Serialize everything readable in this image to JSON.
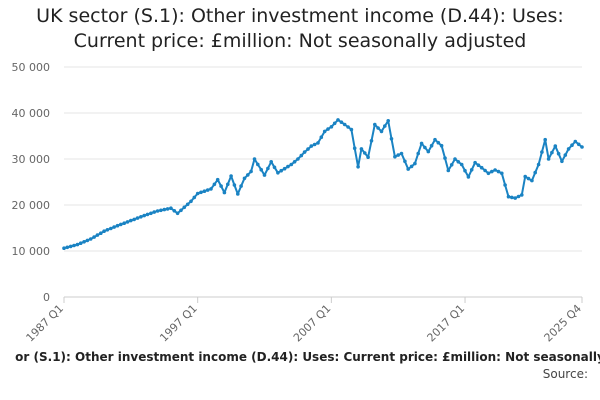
{
  "title_lines": [
    "UK sector (S.1): Other investment income (D.44): Uses:",
    "Current price: £million: Not seasonally adjusted"
  ],
  "footer_series_label": "or (S.1): Other investment income (D.44): Uses: Current price: £million: Not seasonally",
  "source_label": "Source:",
  "colors": {
    "line": "#1a83c3",
    "grid": "#e6e6e6",
    "axis": "#cccccc"
  },
  "chart_data": {
    "type": "line",
    "title": "UK sector (S.1): Other investment income (D.44): Uses: Current price: £million: Not seasonally adjusted",
    "xlabel": "",
    "ylabel": "",
    "ylim": [
      0,
      50000
    ],
    "y_ticks": [
      0,
      10000,
      20000,
      30000,
      40000,
      50000
    ],
    "y_tick_labels": [
      "0",
      "10 000",
      "20 000",
      "30 000",
      "40 000",
      "50 000"
    ],
    "x_ticks": [
      "1987 Q1",
      "1997 Q1",
      "2007 Q1",
      "2017 Q1",
      "2025 Q4"
    ],
    "x_range": [
      "1987 Q1",
      "2025 Q4"
    ],
    "grid": true,
    "legend": "none",
    "anchors": [
      [
        "1987 Q1",
        10600
      ],
      [
        "1988 Q1",
        11400
      ],
      [
        "1989 Q1",
        12600
      ],
      [
        "1990 Q1",
        14300
      ],
      [
        "1991 Q1",
        15500
      ],
      [
        "1992 Q1",
        16600
      ],
      [
        "1993 Q1",
        17700
      ],
      [
        "1994 Q1",
        18700
      ],
      [
        "1995 Q1",
        19300
      ],
      [
        "1995 Q3",
        18200
      ],
      [
        "1996 Q3",
        20800
      ],
      [
        "1997 Q1",
        22500
      ],
      [
        "1998 Q1",
        23500
      ],
      [
        "1998 Q3",
        25500
      ],
      [
        "1999 Q1",
        22700
      ],
      [
        "1999 Q3",
        26300
      ],
      [
        "2000 Q1",
        22400
      ],
      [
        "2000 Q3",
        25800
      ],
      [
        "2001 Q1",
        27300
      ],
      [
        "2001 Q2",
        30000
      ],
      [
        "2002 Q1",
        26500
      ],
      [
        "2002 Q3",
        29400
      ],
      [
        "2003 Q1",
        27000
      ],
      [
        "2004 Q1",
        28800
      ],
      [
        "2004 Q3",
        30000
      ],
      [
        "2005 Q1",
        31500
      ],
      [
        "2005 Q3",
        32800
      ],
      [
        "2006 Q1",
        33500
      ],
      [
        "2006 Q3",
        36000
      ],
      [
        "2007 Q1",
        37000
      ],
      [
        "2007 Q3",
        38500
      ],
      [
        "2008 Q1",
        37500
      ],
      [
        "2008 Q3",
        36400
      ],
      [
        "2009 Q1",
        28300
      ],
      [
        "2009 Q2",
        32200
      ],
      [
        "2009 Q4",
        30400
      ],
      [
        "2010 Q2",
        37500
      ],
      [
        "2010 Q4",
        36000
      ],
      [
        "2011 Q2",
        38300
      ],
      [
        "2011 Q4",
        30500
      ],
      [
        "2012 Q2",
        31200
      ],
      [
        "2012 Q4",
        27800
      ],
      [
        "2013 Q2",
        29000
      ],
      [
        "2013 Q4",
        33400
      ],
      [
        "2014 Q2",
        31600
      ],
      [
        "2014 Q4",
        34200
      ],
      [
        "2015 Q2",
        32900
      ],
      [
        "2015 Q4",
        27500
      ],
      [
        "2016 Q2",
        30000
      ],
      [
        "2016 Q4",
        28800
      ],
      [
        "2017 Q2",
        26100
      ],
      [
        "2017 Q4",
        29200
      ],
      [
        "2018 Q2",
        28100
      ],
      [
        "2018 Q4",
        26900
      ],
      [
        "2019 Q2",
        27600
      ],
      [
        "2019 Q4",
        26900
      ],
      [
        "2020 Q2",
        21800
      ],
      [
        "2020 Q4",
        21500
      ],
      [
        "2021 Q2",
        22200
      ],
      [
        "2021 Q3",
        26200
      ],
      [
        "2022 Q1",
        25300
      ],
      [
        "2022 Q3",
        28800
      ],
      [
        "2023 Q1",
        34200
      ],
      [
        "2023 Q2",
        30000
      ],
      [
        "2023 Q4",
        32800
      ],
      [
        "2024 Q2",
        29500
      ],
      [
        "2024 Q4",
        32200
      ],
      [
        "2025 Q2",
        33800
      ],
      [
        "2025 Q4",
        32600
      ]
    ]
  }
}
